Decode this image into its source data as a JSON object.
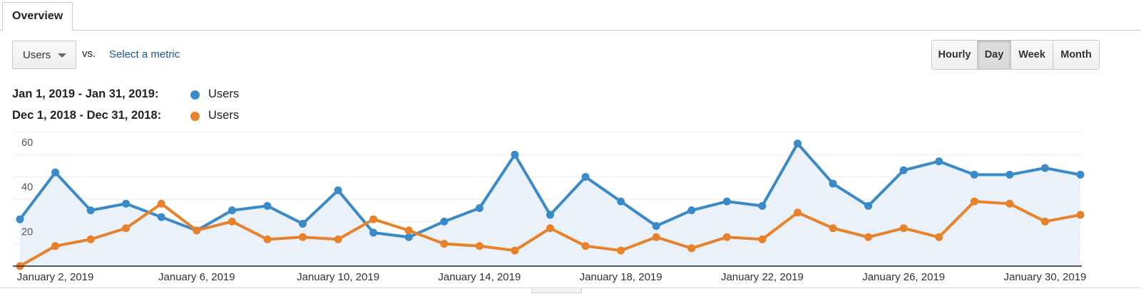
{
  "tabs": [
    {
      "label": "Overview"
    }
  ],
  "controls": {
    "metric_select": "Users",
    "vs_label": "vs.",
    "select_metric_link": "Select a metric",
    "granularity": [
      "Hourly",
      "Day",
      "Week",
      "Month"
    ],
    "granularity_active": "Day"
  },
  "legend": [
    {
      "range": "Jan 1, 2019 - Jan 31, 2019:",
      "series": "Users",
      "color": "#3a8ac8"
    },
    {
      "range": "Dec 1, 2018 - Dec 31, 2018:",
      "series": "Users",
      "color": "#e8822a"
    }
  ],
  "chart_data": {
    "type": "line",
    "x": [
      "January 1, 2019",
      "January 2, 2019",
      "January 3, 2019",
      "January 4, 2019",
      "January 5, 2019",
      "January 6, 2019",
      "January 7, 2019",
      "January 8, 2019",
      "January 9, 2019",
      "January 10, 2019",
      "January 11, 2019",
      "January 12, 2019",
      "January 13, 2019",
      "January 14, 2019",
      "January 15, 2019",
      "January 16, 2019",
      "January 17, 2019",
      "January 18, 2019",
      "January 19, 2019",
      "January 20, 2019",
      "January 21, 2019",
      "January 22, 2019",
      "January 23, 2019",
      "January 24, 2019",
      "January 25, 2019",
      "January 26, 2019",
      "January 27, 2019",
      "January 28, 2019",
      "January 29, 2019",
      "January 30, 2019",
      "January 31, 2019"
    ],
    "x_tick_labels": [
      "January 2, 2019",
      "January 6, 2019",
      "January 10, 2019",
      "January 14, 2019",
      "January 18, 2019",
      "January 22, 2019",
      "January 26, 2019",
      "January 30, 2019"
    ],
    "y_ticks": [
      20,
      40,
      60
    ],
    "ylim": [
      0,
      60
    ],
    "series": [
      {
        "name": "Users",
        "color": "#3a8ac8",
        "filled": true,
        "values": [
          21,
          42,
          25,
          28,
          22,
          16,
          25,
          27,
          19,
          34,
          15,
          13,
          20,
          26,
          50,
          23,
          40,
          29,
          18,
          25,
          29,
          27,
          55,
          37,
          27,
          43,
          47,
          41,
          41,
          44,
          41
        ]
      },
      {
        "name": "Users",
        "color": "#e8822a",
        "filled": false,
        "values": [
          0,
          9,
          12,
          17,
          28,
          16,
          20,
          12,
          13,
          12,
          21,
          16,
          10,
          9,
          7,
          17,
          9,
          7,
          13,
          8,
          13,
          12,
          24,
          17,
          13,
          17,
          13,
          29,
          28,
          20,
          23
        ]
      }
    ],
    "grid": true
  }
}
